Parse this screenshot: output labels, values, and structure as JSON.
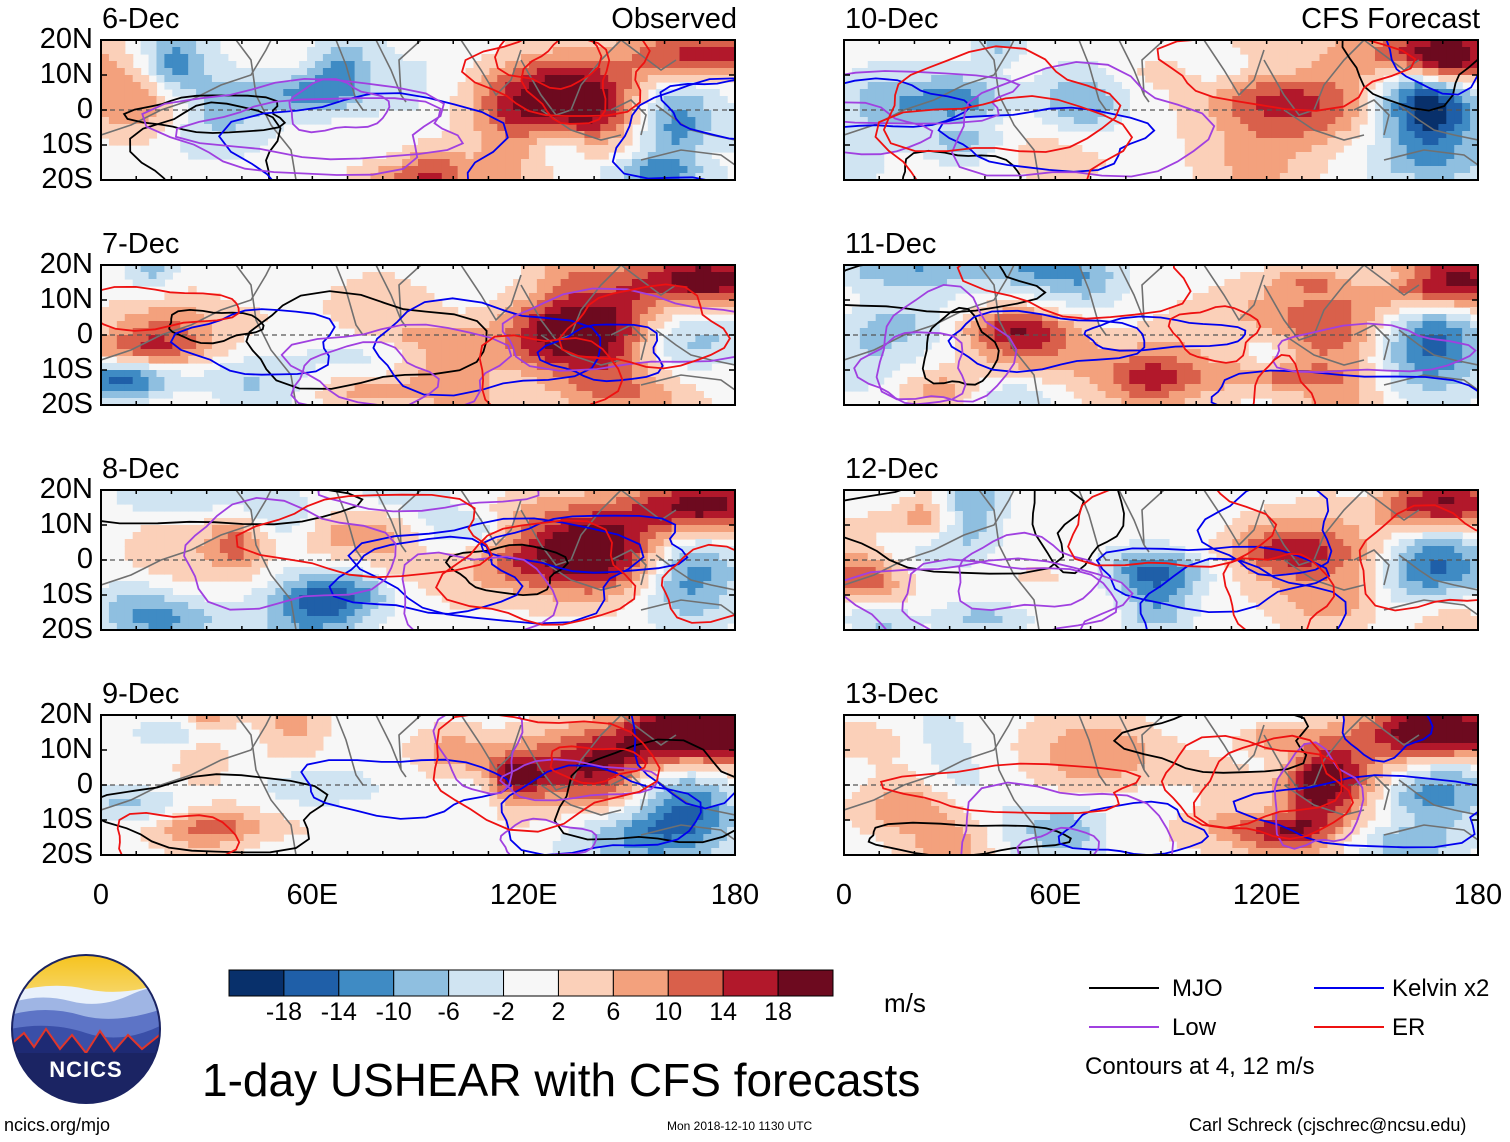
{
  "chart_data": {
    "type": "heatmap",
    "title": "1-day USHEAR with CFS forecasts",
    "units": "m/s",
    "variable": "USHEAR",
    "x_axis": {
      "ticks": [
        "0",
        "60E",
        "120E",
        "180"
      ],
      "range": [
        0,
        180
      ]
    },
    "y_axis": {
      "ticks": [
        "20N",
        "10N",
        "0",
        "10S",
        "20S"
      ],
      "range": [
        -20,
        20
      ]
    },
    "columns": [
      {
        "label": "Observed",
        "panels": [
          "6-Dec",
          "7-Dec",
          "8-Dec",
          "9-Dec"
        ]
      },
      {
        "label": "CFS Forecast",
        "panels": [
          "10-Dec",
          "11-Dec",
          "12-Dec",
          "13-Dec"
        ]
      }
    ],
    "colorbar": {
      "levels": [
        "-18",
        "-14",
        "-10",
        "-6",
        "-2",
        "2",
        "6",
        "10",
        "14",
        "18"
      ],
      "colors": [
        "#08306b",
        "#1f5fa8",
        "#3f8bc4",
        "#8fbfe0",
        "#d0e4f2",
        "#f7f7f7",
        "#fbd0b9",
        "#f3a17d",
        "#d9604b",
        "#b2182b",
        "#6d0a1f"
      ]
    },
    "legend": [
      {
        "name": "MJO",
        "color": "#000000"
      },
      {
        "name": "Kelvin x2",
        "color": "#0000ee"
      },
      {
        "name": "Low",
        "color": "#a040e0"
      },
      {
        "name": "ER",
        "color": "#ee1111"
      }
    ],
    "contour_note": "Contours at 4, 12 m/s"
  },
  "branding": {
    "logo_text": "NCICS",
    "url": "ncics.org/mjo"
  },
  "footer": {
    "timestamp": "Mon 2018-12-10 1130 UTC",
    "author": "Carl Schreck (cjschrec@ncsu.edu)"
  }
}
